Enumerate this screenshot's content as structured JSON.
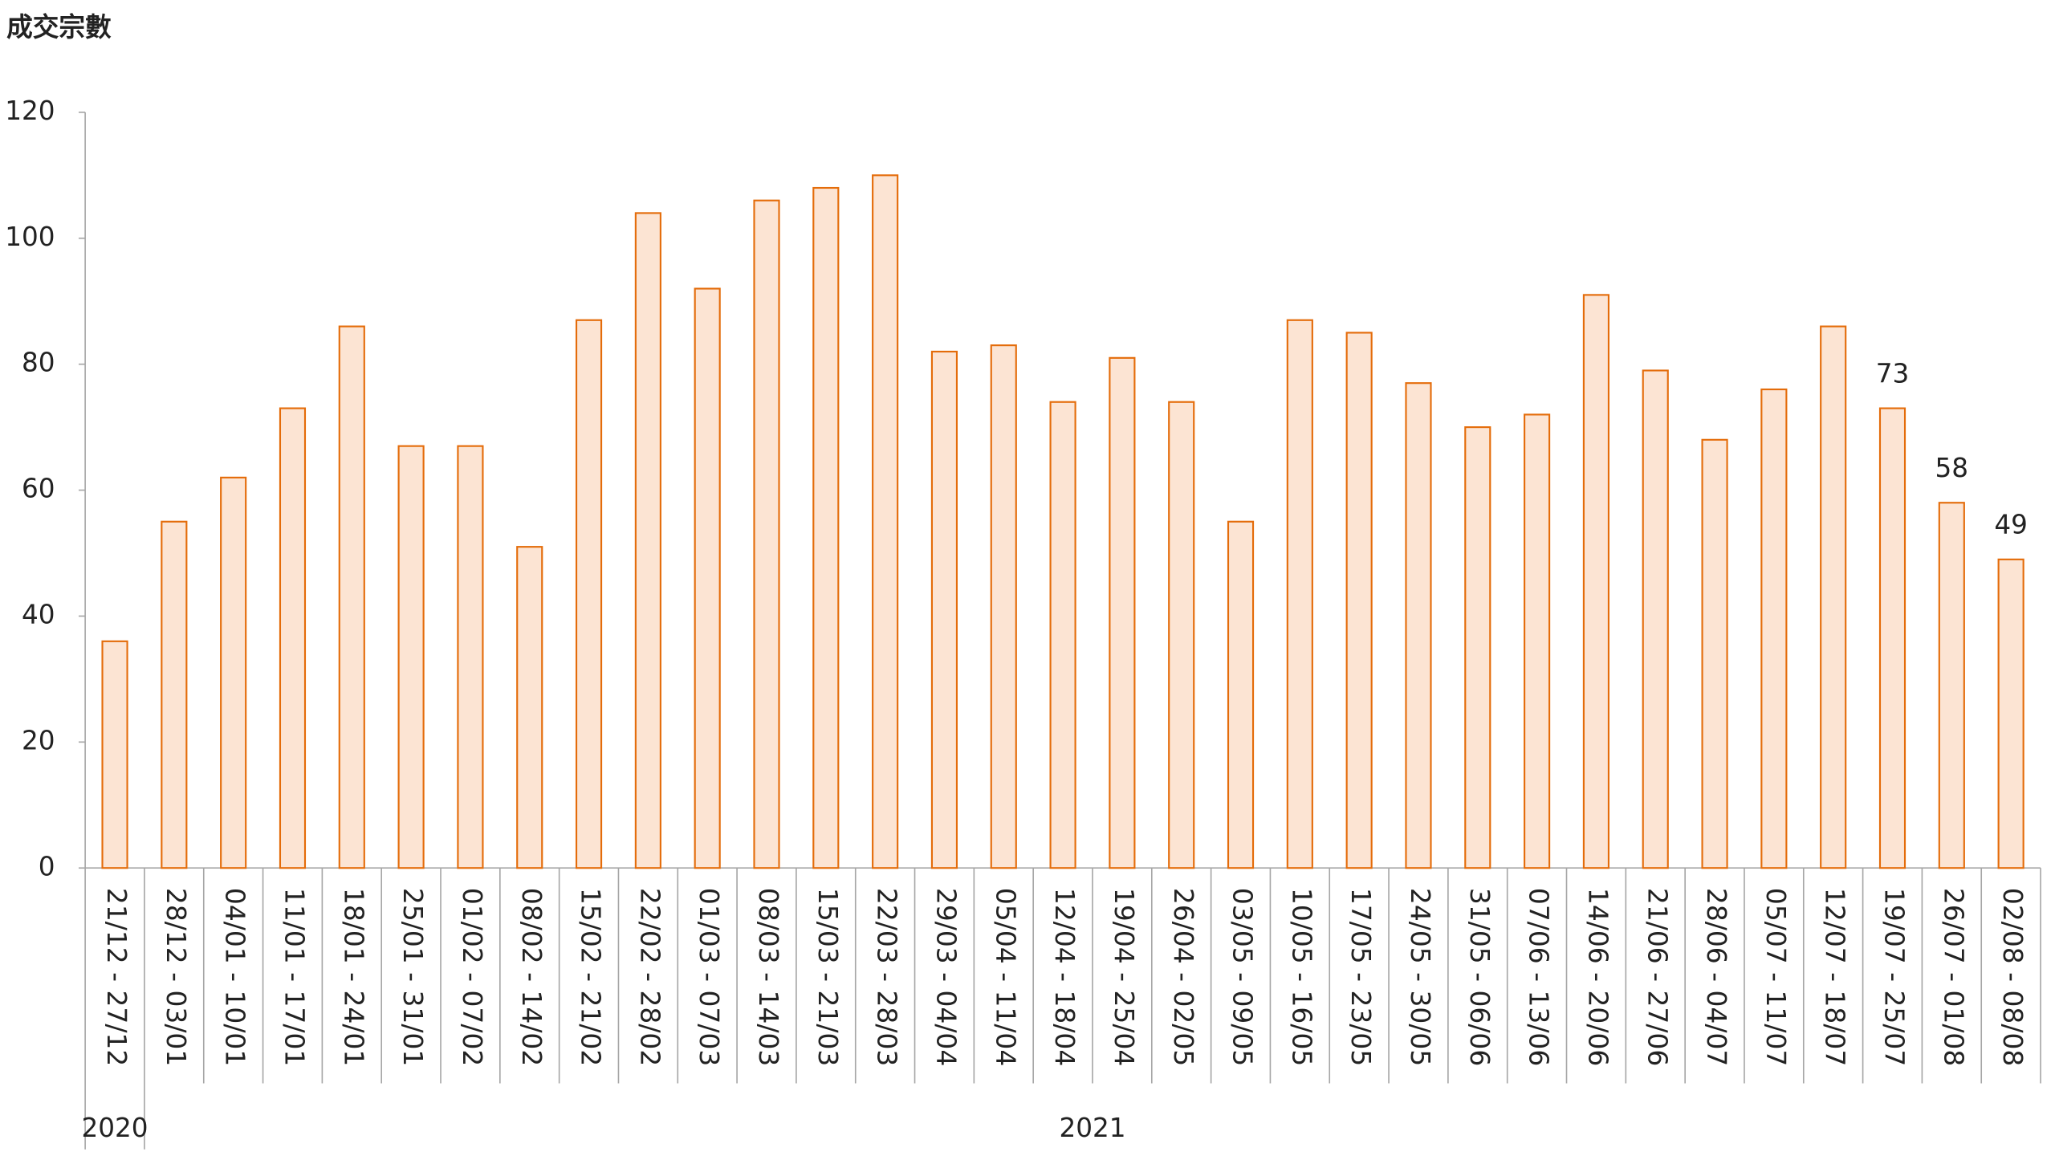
{
  "chart_data": {
    "type": "bar",
    "y_axis_title": "成交宗數",
    "categories": [
      "21/12 - 27/12",
      "28/12 - 03/01",
      "04/01 - 10/01",
      "11/01 - 17/01",
      "18/01 - 24/01",
      "25/01 - 31/01",
      "01/02 - 07/02",
      "08/02 - 14/02",
      "15/02 - 21/02",
      "22/02 - 28/02",
      "01/03 - 07/03",
      "08/03 - 14/03",
      "15/03 - 21/03",
      "22/03 - 28/03",
      "29/03 - 04/04",
      "05/04 - 11/04",
      "12/04 - 18/04",
      "19/04 - 25/04",
      "26/04 - 02/05",
      "03/05 - 09/05",
      "10/05 - 16/05",
      "17/05 - 23/05",
      "24/05 - 30/05",
      "31/05 - 06/06",
      "07/06 - 13/06",
      "14/06 - 20/06",
      "21/06 - 27/06",
      "28/06 - 04/07",
      "05/07 - 11/07",
      "12/07 - 18/07",
      "19/07 - 25/07",
      "26/07 - 01/08",
      "02/08 - 08/08"
    ],
    "values": [
      36,
      55,
      62,
      73,
      86,
      67,
      67,
      51,
      87,
      104,
      92,
      106,
      108,
      110,
      82,
      83,
      74,
      81,
      74,
      55,
      87,
      85,
      77,
      70,
      72,
      91,
      79,
      68,
      76,
      86,
      73,
      58,
      49
    ],
    "value_labels": [
      null,
      null,
      null,
      null,
      null,
      null,
      null,
      null,
      null,
      null,
      null,
      null,
      null,
      null,
      null,
      null,
      null,
      null,
      null,
      null,
      null,
      null,
      null,
      null,
      null,
      null,
      null,
      null,
      null,
      null,
      "73",
      "58",
      "49"
    ],
    "year_groups": [
      {
        "label": "2020",
        "count": 1
      },
      {
        "label": "2021",
        "count": 32
      }
    ],
    "color": "#fce4d3",
    "edge_color": "#e46c0a",
    "ylim": [
      0,
      120
    ],
    "yticks": [
      0,
      20,
      40,
      60,
      80,
      100,
      120
    ],
    "grid": false
  }
}
